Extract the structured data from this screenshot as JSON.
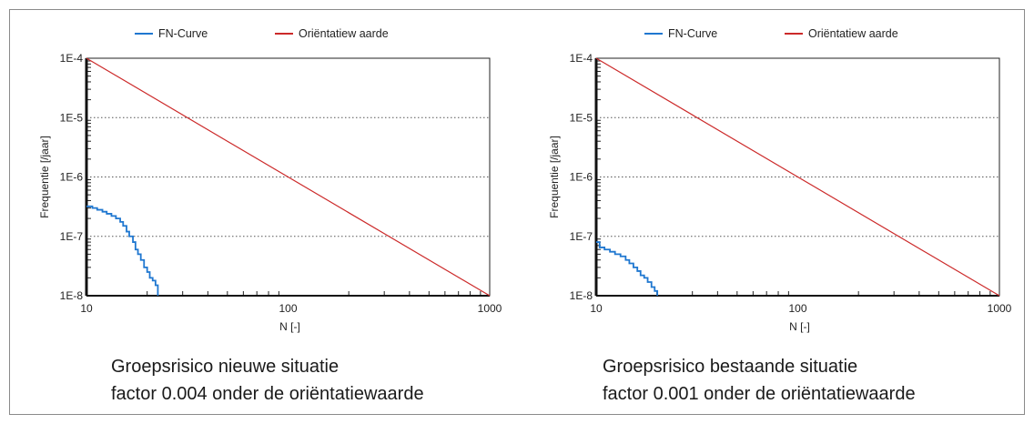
{
  "chart_data": [
    {
      "type": "line",
      "title": "",
      "xlabel": "N [-]",
      "ylabel": "Frequentie [/jaar]",
      "xscale": "log",
      "yscale": "log",
      "xlim": [
        10,
        1000
      ],
      "ylim": [
        1e-08,
        0.0001
      ],
      "x_ticks": [
        10,
        100,
        1000
      ],
      "x_tick_labels": [
        "10",
        "100",
        "1000"
      ],
      "y_ticks": [
        0.0001,
        1e-05,
        1e-06,
        1e-07,
        1e-08
      ],
      "y_tick_labels": [
        "1E-4",
        "1E-5",
        "1E-6",
        "1E-7",
        "1E-8"
      ],
      "grid": "horizontal dotted",
      "legend_position": "top",
      "colors": {
        "fn": "#1f77d0",
        "orient": "#cc2a2a"
      },
      "series": [
        {
          "name": "FN-Curve",
          "color": "#1f77d0",
          "points": [
            [
              10,
              3.2e-07
            ],
            [
              10.7,
              3e-07
            ],
            [
              11.3,
              2.8e-07
            ],
            [
              12,
              2.6e-07
            ],
            [
              12.6,
              2.4e-07
            ],
            [
              13.3,
              2.2e-07
            ],
            [
              14,
              2e-07
            ],
            [
              14.7,
              1.75e-07
            ],
            [
              15.2,
              1.5e-07
            ],
            [
              15.8,
              1.2e-07
            ],
            [
              16.3,
              1e-07
            ],
            [
              17,
              8e-08
            ],
            [
              17.5,
              6e-08
            ],
            [
              18,
              5e-08
            ],
            [
              18.6,
              4e-08
            ],
            [
              19.3,
              3e-08
            ],
            [
              20,
              2.5e-08
            ],
            [
              20.6,
              2e-08
            ],
            [
              21.3,
              1.8e-08
            ],
            [
              22,
              1.5e-08
            ],
            [
              22.6,
              1e-08
            ]
          ]
        },
        {
          "name": "Oriëntatiew aarde",
          "color": "#cc2a2a",
          "points": [
            [
              10,
              0.0001
            ],
            [
              1000,
              1e-08
            ]
          ]
        }
      ]
    },
    {
      "type": "line",
      "title": "",
      "xlabel": "N [-]",
      "ylabel": "Frequentie [/jaar]",
      "xscale": "log",
      "yscale": "log",
      "xlim": [
        10,
        1000
      ],
      "ylim": [
        1e-08,
        0.0001
      ],
      "x_ticks": [
        10,
        100,
        1000
      ],
      "x_tick_labels": [
        "10",
        "100",
        "1000"
      ],
      "y_ticks": [
        0.0001,
        1e-05,
        1e-06,
        1e-07,
        1e-08
      ],
      "y_tick_labels": [
        "1E-4",
        "1E-5",
        "1E-6",
        "1E-7",
        "1E-8"
      ],
      "grid": "horizontal dotted",
      "legend_position": "top",
      "colors": {
        "fn": "#1f77d0",
        "orient": "#cc2a2a"
      },
      "series": [
        {
          "name": "FN-Curve",
          "color": "#1f77d0",
          "points": [
            [
              10,
              8e-08
            ],
            [
              10.4,
              6.5e-08
            ],
            [
              11,
              6e-08
            ],
            [
              11.7,
              5.5e-08
            ],
            [
              12.4,
              5e-08
            ],
            [
              13.2,
              4.6e-08
            ],
            [
              14,
              4e-08
            ],
            [
              14.6,
              3.5e-08
            ],
            [
              15.3,
              3e-08
            ],
            [
              16,
              2.6e-08
            ],
            [
              16.6,
              2.2e-08
            ],
            [
              17.3,
              2e-08
            ],
            [
              18,
              1.7e-08
            ],
            [
              18.8,
              1.4e-08
            ],
            [
              19.5,
              1.2e-08
            ],
            [
              20.1,
              1e-08
            ]
          ]
        },
        {
          "name": "Oriëntatiew aarde",
          "color": "#cc2a2a",
          "points": [
            [
              10,
              0.0001
            ],
            [
              1000,
              1e-08
            ]
          ]
        }
      ]
    }
  ],
  "captions": [
    {
      "line1": "Groepsrisico nieuwe situatie",
      "line2": "factor 0.004 onder de oriëntatiewaarde"
    },
    {
      "line1": "Groepsrisico bestaande situatie",
      "line2": "factor 0.001 onder de oriëntatiewaarde"
    }
  ]
}
